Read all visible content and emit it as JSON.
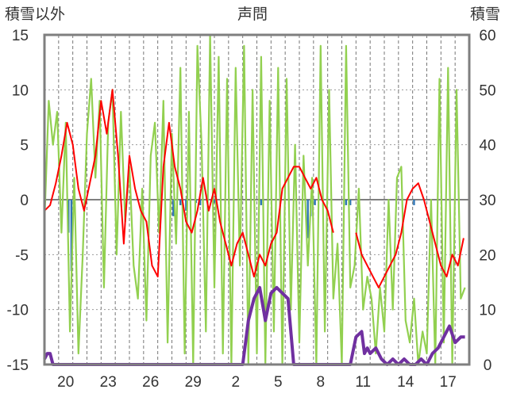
{
  "chart_data": {
    "type": "line",
    "title": "声問",
    "ylabel_left": "積雪以外",
    "ylabel_right": "積雪",
    "left_axis": {
      "min": -15,
      "max": 15,
      "ticks": [
        -15,
        -10,
        -5,
        0,
        5,
        10,
        15
      ]
    },
    "right_axis": {
      "min": 0,
      "max": 60,
      "ticks": [
        0,
        10,
        20,
        30,
        40,
        50,
        60
      ]
    },
    "x_axis": {
      "min": 0,
      "max": 30,
      "tick_labels": [
        "20",
        "23",
        "26",
        "29",
        "2",
        "5",
        "8",
        "11",
        "14",
        "17"
      ],
      "tick_positions": [
        1.5,
        4.5,
        7.5,
        10.5,
        13.5,
        16.5,
        19.5,
        22.5,
        25.5,
        28.5
      ]
    },
    "day_lines": [
      1,
      2,
      3,
      4,
      5,
      6,
      7,
      8,
      9,
      10,
      11,
      12,
      13,
      14,
      15,
      16,
      17,
      18,
      19,
      20,
      21,
      22,
      23,
      24,
      25,
      26,
      27,
      28,
      29
    ],
    "gridlines_y": [
      -10,
      -5,
      5,
      10
    ],
    "series": [
      {
        "axis": "left",
        "style": "line",
        "color": "#92D050",
        "x": [
          0,
          0.3,
          0.6,
          0.9,
          1.2,
          1.5,
          1.8,
          2.1,
          2.4,
          2.7,
          3.0,
          3.3,
          3.6,
          3.9,
          4.2,
          4.5,
          4.8,
          5.1,
          5.4,
          5.7,
          6.0,
          6.3,
          6.6,
          6.9,
          7.2,
          7.5,
          7.8,
          8.1,
          8.4,
          8.7,
          9.0,
          9.3,
          9.6,
          9.9,
          10.2,
          10.5,
          10.8,
          11.1,
          11.4,
          11.7,
          12.0,
          12.3,
          12.6,
          12.9,
          13.2,
          13.5,
          13.8,
          14.1,
          14.4,
          14.7,
          15.0,
          15.3,
          15.6,
          15.9,
          16.2,
          16.5,
          16.8,
          17.1,
          17.4,
          17.7,
          18.0,
          18.3,
          18.6,
          18.9,
          19.2,
          19.5,
          19.8,
          20.1,
          20.4,
          20.7,
          21.0,
          21.3,
          21.6,
          21.9,
          22.2,
          22.5,
          22.8,
          23.1,
          23.4,
          23.7,
          24.0,
          24.3,
          24.6,
          24.9,
          25.2,
          25.5,
          25.8,
          26.1,
          26.4,
          26.7,
          27.0,
          27.3,
          27.6,
          27.9,
          28.2,
          28.5,
          28.8,
          29.1,
          29.4,
          29.7
        ],
        "y": [
          -2,
          9,
          5,
          8,
          -3,
          7,
          -12,
          2,
          -14,
          -5,
          6,
          11,
          2,
          9,
          -8,
          7,
          10,
          -5,
          8,
          -2,
          3,
          -6,
          -9,
          1,
          -11,
          4,
          7,
          -3,
          9,
          -13,
          6,
          -4,
          12,
          -14,
          8,
          -15,
          14,
          5,
          -12,
          15,
          -8,
          13,
          -14,
          11,
          -15,
          12,
          -6,
          14,
          -15,
          10,
          -14,
          13,
          -15,
          9,
          -12,
          12,
          -15,
          11,
          -10,
          5,
          -13,
          4,
          -6,
          2,
          -15,
          14,
          -12,
          10,
          -9,
          -4,
          -15,
          14,
          -8,
          -6,
          1,
          -10,
          -7,
          -9,
          -14,
          -8,
          -12,
          0,
          -10,
          2,
          3,
          -11,
          -13,
          -9,
          -15,
          -12,
          -14,
          0,
          -15,
          11,
          -13,
          12,
          -15,
          10,
          -9,
          -8
        ],
        "name": ""
      },
      {
        "axis": "left",
        "style": "line",
        "color": "#FF0000",
        "x": [
          0,
          0.4,
          0.8,
          1.2,
          1.6,
          2.0,
          2.4,
          2.8,
          3.2,
          3.6,
          4.0,
          4.4,
          4.8,
          5.2,
          5.6,
          6.0,
          6.4,
          6.8,
          7.2,
          7.6,
          8.0,
          8.4,
          8.8,
          9.2,
          9.6,
          10.0,
          10.4,
          10.8,
          11.2,
          11.6,
          12.0,
          12.4,
          12.8,
          13.2,
          13.6,
          14.0,
          14.4,
          14.8,
          15.2,
          15.6,
          16.0,
          16.4,
          16.8,
          17.2,
          17.6,
          18.0,
          18.4,
          18.8,
          19.2,
          19.6,
          20.0,
          20.4
        ],
        "y": [
          -1,
          -0.5,
          1.5,
          4,
          7,
          5,
          1,
          -1,
          1.5,
          4,
          9,
          6,
          10,
          4,
          -4,
          4,
          1,
          -1,
          -2,
          -6,
          -7,
          3,
          7,
          3,
          1,
          -2,
          -3,
          -1,
          2,
          -1,
          1,
          -2,
          -4,
          -6,
          -4,
          -3,
          -5,
          -7,
          -5,
          -6,
          -4,
          -3,
          1,
          2,
          3,
          3,
          2,
          1,
          2,
          0,
          -1,
          -3
        ]
      },
      {
        "axis": "left",
        "style": "line",
        "color": "#FF0000",
        "x": [
          22.0,
          22.4,
          22.8,
          23.2,
          23.6,
          24.0,
          24.4,
          24.8,
          25.2,
          25.6,
          26.0,
          26.4,
          26.8,
          27.2,
          27.6,
          28.0,
          28.4,
          28.8,
          29.2,
          29.6
        ],
        "y": [
          -3,
          -5,
          -6,
          -7,
          -8,
          -7,
          -6,
          -5,
          -3,
          0,
          1,
          1.5,
          0,
          -2,
          -4,
          -6,
          -7,
          -5,
          -6,
          -3.5
        ]
      },
      {
        "axis": "left",
        "style": "bar",
        "color": "#2E75B6",
        "x": [
          1.7,
          1.9,
          9.1,
          9.6,
          10.0,
          10.7,
          11.0,
          12.0,
          15.3,
          18.6,
          18.8,
          19.1,
          21.3,
          21.6,
          26.1
        ],
        "y": [
          -3,
          -6.5,
          -1.5,
          -0.5,
          -1,
          -0.3,
          -0.5,
          -0.3,
          -0.5,
          -3.5,
          -1.5,
          -0.5,
          -0.5,
          -0.5,
          -0.5
        ]
      },
      {
        "axis": "right",
        "style": "line",
        "color": "#7030A0",
        "x": [
          0,
          0.2,
          0.4,
          0.6,
          14.0,
          14.4,
          14.8,
          15.2,
          15.6,
          16.0,
          16.4,
          16.8,
          17.2,
          17.6,
          18.0,
          21.0,
          21.6,
          22.0,
          22.4,
          22.6,
          22.8,
          23.0,
          23.4,
          23.8,
          24.2,
          24.6,
          25.0,
          25.4,
          25.8,
          26.2,
          26.6,
          27.0,
          27.4,
          27.8,
          28.2,
          28.6,
          29.0,
          29.4,
          29.7
        ],
        "y": [
          1,
          2,
          2,
          0,
          0,
          8,
          12,
          14,
          8,
          13,
          14,
          13,
          12,
          0,
          0,
          0,
          0,
          5,
          6,
          2,
          3,
          2,
          3,
          1,
          0,
          1,
          0,
          1,
          0,
          0,
          1,
          0,
          2,
          3,
          5,
          7,
          4,
          5,
          5
        ]
      }
    ]
  }
}
